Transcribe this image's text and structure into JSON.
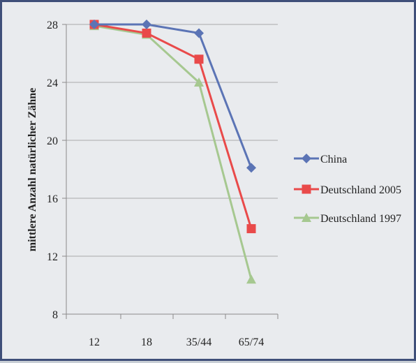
{
  "chart_data": {
    "type": "line",
    "title": "",
    "xlabel": "",
    "ylabel": "mittlere Anzahl natürlicher Zähne",
    "categories": [
      "12",
      "18",
      "35/44",
      "65/74"
    ],
    "ylim": [
      8,
      28
    ],
    "yticks": [
      8,
      12,
      16,
      20,
      24,
      28
    ],
    "grid": true,
    "legend_position": "right",
    "series": [
      {
        "name": "China",
        "values": [
          28.0,
          28.0,
          27.4,
          18.1
        ],
        "color": "#5b74b5",
        "marker": "diamond"
      },
      {
        "name": "Deutschland 2005",
        "values": [
          28.0,
          27.4,
          25.6,
          13.9
        ],
        "color": "#e94a4a",
        "marker": "square"
      },
      {
        "name": "Deutschland 1997",
        "values": [
          27.9,
          27.3,
          24.0,
          10.4
        ],
        "color": "#a6c890",
        "marker": "triangle"
      }
    ]
  }
}
